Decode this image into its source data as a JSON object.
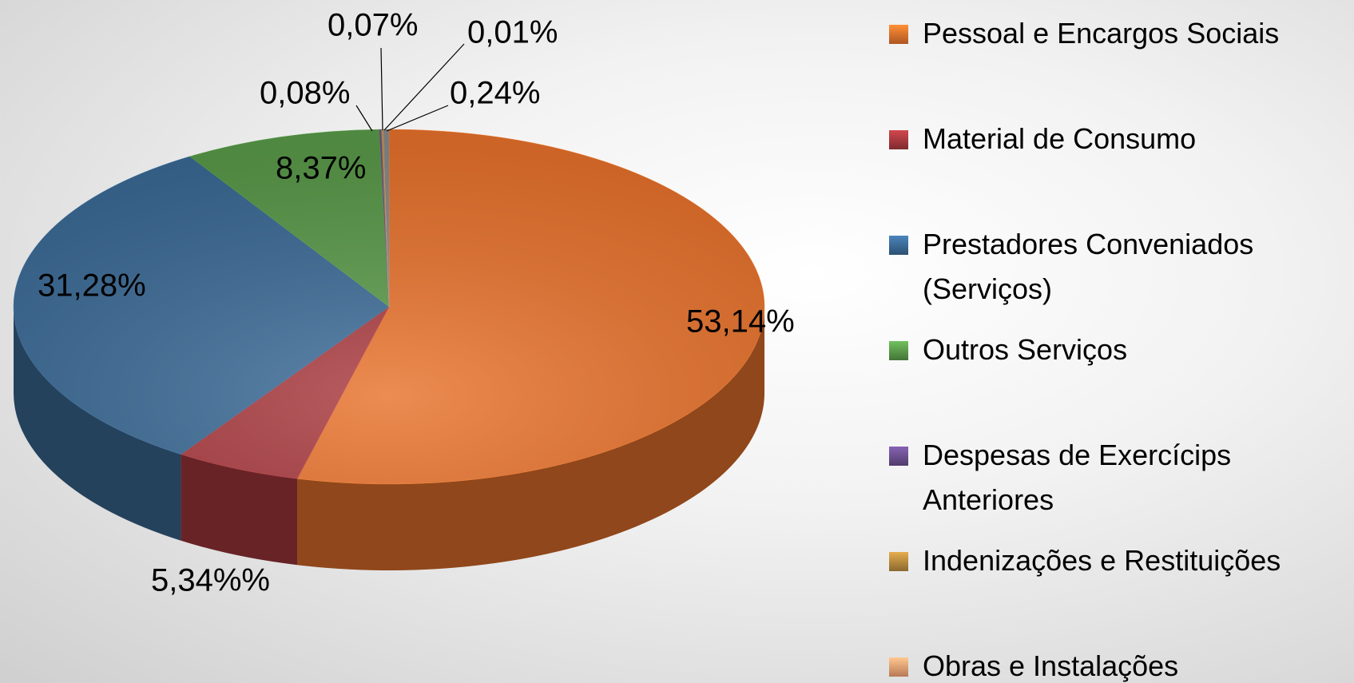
{
  "chart_data": {
    "type": "pie",
    "categories": [
      "Pessoal e Encargos Sociais",
      "Material de Consumo",
      "Prestadores Conveniados (Serviços)",
      "Outros Serviços",
      "Despesas de Exercícips Anteriores",
      "Indenizações e Restituições",
      "Obras e Instalações",
      null
    ],
    "values": [
      53.14,
      5.34,
      31.28,
      8.37,
      0.08,
      0.07,
      0.01,
      0.24
    ],
    "value_labels": [
      "53,14%",
      "5,34%%",
      "31,28%",
      "8,37%",
      "0,08%",
      "0,07%",
      "0,01%",
      "0,24%"
    ],
    "colors": [
      "#e8722c",
      "#a8393e",
      "#3b6a96",
      "#5a9a4a",
      "#6b4f8f",
      "#b88a3e",
      "#f4a072",
      "#8a8a8a"
    ],
    "legend": "right"
  }
}
